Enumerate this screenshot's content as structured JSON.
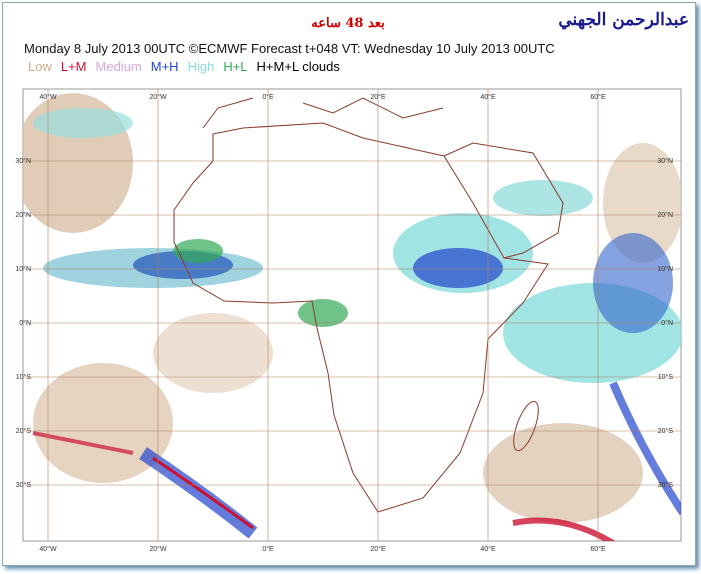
{
  "header": {
    "author": "عبدالرحمن الجهني",
    "forecast_note": "بعد 48 ساعه",
    "title": "Monday 8 July 2013 00UTC ©ECMWF Forecast t+048 VT: Wednesday 10 July 2013 00UTC"
  },
  "legend": [
    {
      "label": "Low",
      "color": "#d4aa88"
    },
    {
      "label": "L+M",
      "color": "#cc1133"
    },
    {
      "label": "Medium",
      "color": "#d9a6d9"
    },
    {
      "label": "M+H",
      "color": "#2244cc"
    },
    {
      "label": "High",
      "color": "#88dddd"
    },
    {
      "label": "H+L",
      "color": "#33aa55"
    },
    {
      "label": "H+M+L clouds",
      "color": "#000000"
    }
  ],
  "map": {
    "longitude_labels": [
      "40°W",
      "20°W",
      "0°E",
      "20°E",
      "40°E",
      "60°E"
    ],
    "latitude_labels": [
      "30°N",
      "20°N",
      "10°N",
      "0°N",
      "10°S",
      "20°S",
      "30°S"
    ]
  }
}
